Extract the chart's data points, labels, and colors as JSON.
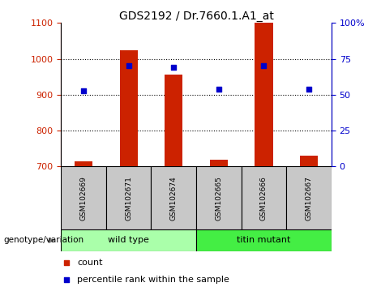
{
  "title": "GDS2192 / Dr.7660.1.A1_at",
  "samples": [
    "GSM102669",
    "GSM102671",
    "GSM102674",
    "GSM102665",
    "GSM102666",
    "GSM102667"
  ],
  "counts": [
    715,
    1025,
    955,
    718,
    1100,
    730
  ],
  "percentiles": [
    53,
    70,
    69,
    54,
    70,
    54
  ],
  "ylim_left": [
    700,
    1100
  ],
  "ylim_right": [
    0,
    100
  ],
  "yticks_left": [
    700,
    800,
    900,
    1000,
    1100
  ],
  "yticks_right": [
    0,
    25,
    50,
    75,
    100
  ],
  "bar_color": "#CC2200",
  "dot_color": "#0000CC",
  "bar_width": 0.4,
  "legend_count_label": "count",
  "legend_percentile_label": "percentile rank within the sample",
  "xlabel_annotation": "genotype/variation",
  "left_tick_color": "#CC2200",
  "right_tick_color": "#0000CC",
  "title_fontsize": 10,
  "tick_fontsize": 8,
  "sample_area_color": "#C8C8C8",
  "wt_color": "#AAFFAA",
  "mut_color": "#44EE44",
  "grid_yticks": [
    800,
    900,
    1000
  ],
  "group_ranges": [
    [
      0,
      2,
      "wild type"
    ],
    [
      3,
      5,
      "titin mutant"
    ]
  ]
}
